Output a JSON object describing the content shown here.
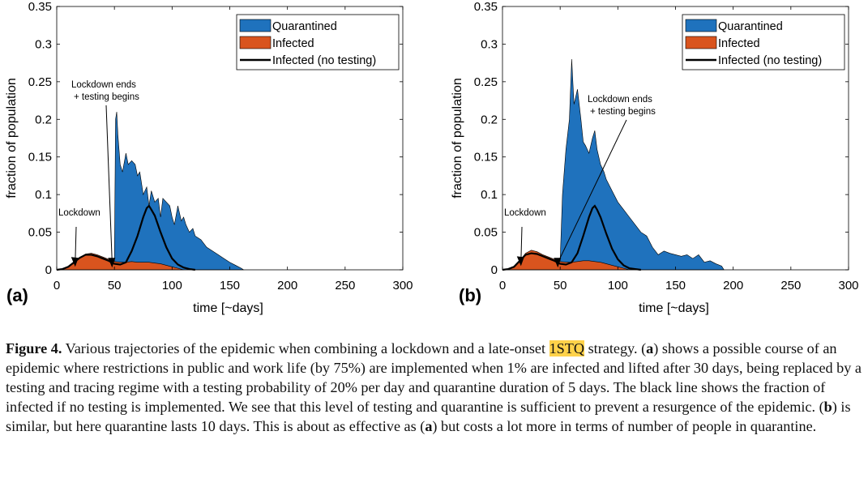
{
  "chart_data": [
    {
      "type": "area",
      "panel_label": "(a)",
      "xlabel": "time [~days]",
      "ylabel": "fraction of population",
      "xlim": [
        0,
        300
      ],
      "ylim": [
        0,
        0.35
      ],
      "xticks": [
        0,
        50,
        100,
        150,
        200,
        250,
        300
      ],
      "yticks": [
        0,
        0.05,
        0.1,
        0.15,
        0.2,
        0.25,
        0.3,
        0.35
      ],
      "ytick_labels": [
        "0",
        "0.05",
        "0.1",
        "0.15",
        "0.2",
        "0.25",
        "0.3",
        "0.35"
      ],
      "grid": false,
      "legend_position": "top-right",
      "series": [
        {
          "name": "Quarantined",
          "color": "#1f72bd",
          "style": "area",
          "x": [
            0,
            10,
            15,
            20,
            25,
            30,
            35,
            40,
            45,
            48,
            50,
            51,
            52,
            53,
            55,
            57,
            60,
            62,
            65,
            68,
            70,
            72,
            75,
            78,
            80,
            82,
            85,
            88,
            90,
            92,
            95,
            98,
            100,
            102,
            105,
            108,
            110,
            112,
            115,
            118,
            120,
            125,
            130,
            135,
            140,
            145,
            150,
            155,
            160,
            162
          ],
          "y": [
            0,
            0,
            0.001,
            0.003,
            0.004,
            0.005,
            0.005,
            0.004,
            0.004,
            0.005,
            0.01,
            0.2,
            0.21,
            0.18,
            0.14,
            0.13,
            0.155,
            0.14,
            0.145,
            0.14,
            0.125,
            0.13,
            0.1,
            0.11,
            0.085,
            0.105,
            0.09,
            0.095,
            0.07,
            0.095,
            0.09,
            0.085,
            0.07,
            0.06,
            0.085,
            0.065,
            0.07,
            0.06,
            0.05,
            0.055,
            0.045,
            0.04,
            0.03,
            0.025,
            0.02,
            0.015,
            0.01,
            0.006,
            0.002,
            0
          ]
        },
        {
          "name": "Infected",
          "color": "#d9541e",
          "style": "area",
          "x": [
            0,
            5,
            10,
            15,
            20,
            25,
            30,
            35,
            40,
            45,
            50,
            55,
            60,
            65,
            70,
            75,
            80,
            85,
            90,
            95,
            100,
            105,
            110
          ],
          "y": [
            0,
            0.001,
            0.004,
            0.01,
            0.016,
            0.021,
            0.022,
            0.02,
            0.017,
            0.014,
            0.011,
            0.01,
            0.01,
            0.011,
            0.01,
            0.01,
            0.01,
            0.009,
            0.008,
            0.006,
            0.004,
            0.002,
            0
          ]
        },
        {
          "name": "Infected (no testing)",
          "color": "#000000",
          "style": "line",
          "x": [
            0,
            5,
            10,
            15,
            20,
            25,
            30,
            35,
            40,
            45,
            50,
            55,
            60,
            65,
            70,
            75,
            78,
            80,
            82,
            85,
            90,
            95,
            100,
            105,
            110,
            115,
            120
          ],
          "y": [
            0,
            0.001,
            0.004,
            0.01,
            0.016,
            0.02,
            0.02,
            0.018,
            0.015,
            0.012,
            0.008,
            0.007,
            0.01,
            0.025,
            0.045,
            0.07,
            0.082,
            0.085,
            0.08,
            0.072,
            0.05,
            0.03,
            0.015,
            0.007,
            0.003,
            0.001,
            0
          ]
        }
      ],
      "annotations": [
        {
          "text": "Lockdown",
          "arrow_to": [
            16,
            0.004
          ]
        },
        {
          "text": "Lockdown ends\n+ testing begins",
          "arrow_to": [
            48,
            0.003
          ]
        }
      ]
    },
    {
      "type": "area",
      "panel_label": "(b)",
      "xlabel": "time [~days]",
      "ylabel": "fraction of population",
      "xlim": [
        0,
        300
      ],
      "ylim": [
        0,
        0.35
      ],
      "xticks": [
        0,
        50,
        100,
        150,
        200,
        250,
        300
      ],
      "yticks": [
        0,
        0.05,
        0.1,
        0.15,
        0.2,
        0.25,
        0.3,
        0.35
      ],
      "ytick_labels": [
        "0",
        "0.05",
        "0.1",
        "0.15",
        "0.2",
        "0.25",
        "0.3",
        "0.35"
      ],
      "grid": false,
      "legend_position": "top-right",
      "series": [
        {
          "name": "Quarantined",
          "color": "#1f72bd",
          "style": "area",
          "x": [
            0,
            10,
            20,
            30,
            40,
            45,
            50,
            52,
            55,
            58,
            60,
            62,
            65,
            68,
            70,
            72,
            75,
            78,
            80,
            82,
            85,
            88,
            90,
            95,
            100,
            105,
            110,
            115,
            120,
            125,
            130,
            135,
            140,
            145,
            150,
            155,
            160,
            165,
            170,
            175,
            180,
            185,
            190,
            192
          ],
          "y": [
            0,
            0.002,
            0.006,
            0.007,
            0.006,
            0.006,
            0.012,
            0.1,
            0.16,
            0.2,
            0.28,
            0.22,
            0.24,
            0.2,
            0.17,
            0.165,
            0.155,
            0.175,
            0.185,
            0.16,
            0.14,
            0.13,
            0.12,
            0.105,
            0.09,
            0.08,
            0.07,
            0.06,
            0.05,
            0.045,
            0.03,
            0.02,
            0.025,
            0.022,
            0.02,
            0.018,
            0.02,
            0.015,
            0.02,
            0.01,
            0.012,
            0.008,
            0.005,
            0
          ]
        },
        {
          "name": "Infected",
          "color": "#d9541e",
          "style": "area",
          "x": [
            0,
            5,
            10,
            15,
            20,
            25,
            30,
            35,
            40,
            45,
            50,
            55,
            60,
            65,
            70,
            75,
            80,
            85,
            90,
            95,
            100,
            105,
            110
          ],
          "y": [
            0,
            0.001,
            0.004,
            0.012,
            0.022,
            0.026,
            0.024,
            0.02,
            0.017,
            0.014,
            0.011,
            0.01,
            0.01,
            0.011,
            0.012,
            0.012,
            0.011,
            0.01,
            0.008,
            0.006,
            0.004,
            0.002,
            0
          ]
        },
        {
          "name": "Infected (no testing)",
          "color": "#000000",
          "style": "line",
          "x": [
            0,
            5,
            10,
            15,
            20,
            25,
            30,
            35,
            40,
            45,
            50,
            55,
            60,
            65,
            70,
            75,
            78,
            80,
            82,
            85,
            90,
            95,
            100,
            105,
            110,
            115,
            120
          ],
          "y": [
            0,
            0.001,
            0.004,
            0.012,
            0.02,
            0.022,
            0.021,
            0.018,
            0.015,
            0.012,
            0.008,
            0.007,
            0.01,
            0.022,
            0.045,
            0.07,
            0.082,
            0.085,
            0.08,
            0.07,
            0.048,
            0.028,
            0.014,
            0.006,
            0.002,
            0.001,
            0
          ]
        }
      ],
      "annotations": [
        {
          "text": "Lockdown",
          "arrow_to": [
            16,
            0.005
          ]
        },
        {
          "text": "Lockdown ends\n+ testing begins",
          "arrow_to": [
            48,
            0.003
          ]
        }
      ]
    }
  ],
  "caption": {
    "figure_label": "Figure 4.",
    "text_before": "Various trajectories of the epidemic when combining a lockdown and a late-onset ",
    "highlight": "1STQ",
    "text_after_1": " strategy. (",
    "ref_a": "a",
    "text_after_2": ") shows a possible course of an epidemic where restrictions in public and work life (by 75%) are implemented when 1% are infected and lifted after 30 days, being replaced by a testing and tracing regime with a testing probability of 20% per day and quarantine duration of 5 days. The black line shows the fraction of infected if no testing is implemented. We see that this level of testing and quarantine is sufficient to prevent a resurgence of the epidemic. (",
    "ref_b": "b",
    "text_after_3": ") is similar, but here quarantine lasts 10 days. This is about as effective as (",
    "ref_a2": "a",
    "text_after_4": ") but costs a lot more in terms of number of people in quarantine."
  }
}
